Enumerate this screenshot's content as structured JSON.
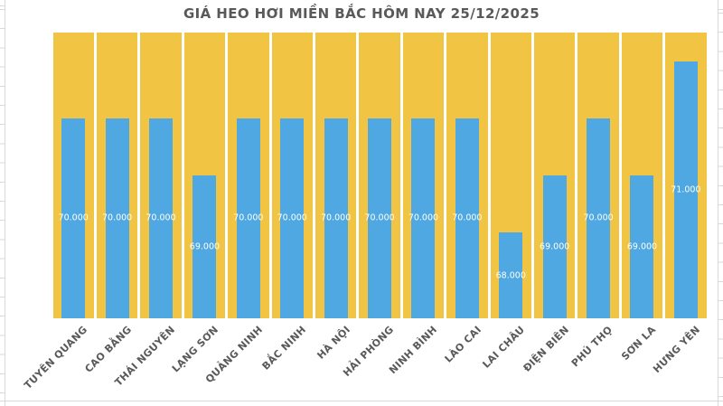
{
  "chart_data": {
    "type": "bar",
    "title": "GIÁ HEO HƠI MIỀN BẮC HÔM NAY 25/12/2025",
    "categories": [
      "TUYÊN QUANG",
      "CAO BẰNG",
      "THÁI NGUYÊN",
      "LẠNG SƠN",
      "QUẢNG NINH",
      "BẮC NINH",
      "HÀ NỘI",
      "HẢI PHÒNG",
      "NINH BÌNH",
      "LÀO CAI",
      "LAI CHÂU",
      "ĐIỆN BIÊN",
      "PHÚ THỌ",
      "SƠN LA",
      "HƯNG YÊN"
    ],
    "values": [
      70000,
      70000,
      70000,
      69000,
      70000,
      70000,
      70000,
      70000,
      70000,
      70000,
      68000,
      69000,
      70000,
      69000,
      71000
    ],
    "value_labels": [
      "70.000",
      "70.000",
      "70.000",
      "69.000",
      "70.000",
      "70.000",
      "70.000",
      "70.000",
      "70.000",
      "70.000",
      "68.000",
      "69.000",
      "70.000",
      "69.000",
      "71.000"
    ],
    "xlabel": "",
    "ylabel": "",
    "ylim": [
      66500,
      71500
    ],
    "background_column_value": 71500,
    "legend_position": "none",
    "grid": "off",
    "value_label_position": "inside-center",
    "x_tick_rotation_deg": 45
  },
  "colors": {
    "bar_fill": "#4FA8E2",
    "background_column_fill": "#F2C443",
    "value_label_text": "#FFFFFF",
    "title_text": "#595959",
    "axis_label_text": "#595959",
    "spreadsheet_gridline": "#D9D9D9",
    "page_background": "#FFFFFF"
  }
}
